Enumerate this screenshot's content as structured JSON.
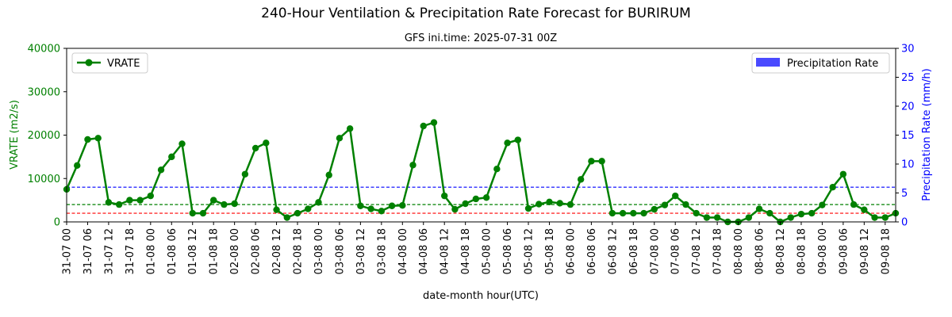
{
  "chart_data": {
    "type": "line",
    "title": "240-Hour Ventilation & Precipitation Rate Forecast for BURIRUM",
    "subtitle": "GFS ini.time: 2025-07-31 00Z",
    "xlabel": "date-month hour(UTC)",
    "ylabel_left": "VRATE (m2/s)",
    "ylabel_right": "Precipitation Rate (mm/h)",
    "ylim_left": [
      0,
      40000
    ],
    "ylim_right": [
      0,
      30
    ],
    "yticks_left": [
      "0",
      "10000",
      "20000",
      "30000",
      "40000"
    ],
    "yticks_right": [
      "0",
      "5",
      "10",
      "15",
      "20",
      "25",
      "30"
    ],
    "x_ticks": [
      "31-07 00",
      "31-07 06",
      "31-07 12",
      "31-07 18",
      "01-08 00",
      "01-08 06",
      "01-08 12",
      "01-08 18",
      "02-08 00",
      "02-08 06",
      "02-08 12",
      "02-08 18",
      "03-08 00",
      "03-08 06",
      "03-08 12",
      "03-08 18",
      "04-08 00",
      "04-08 06",
      "04-08 12",
      "04-08 18",
      "05-08 00",
      "05-08 06",
      "05-08 12",
      "05-08 18",
      "06-08 00",
      "06-08 06",
      "06-08 12",
      "06-08 18",
      "07-08 00",
      "07-08 06",
      "07-08 12",
      "07-08 18",
      "08-08 00",
      "08-08 06",
      "08-08 12",
      "08-08 18",
      "09-08 00",
      "09-08 06",
      "09-08 12",
      "09-08 18"
    ],
    "series": [
      {
        "name": "VRATE",
        "axis": "left",
        "color": "#008000",
        "values": [
          7500,
          13000,
          19000,
          19300,
          4500,
          4000,
          5000,
          5000,
          6000,
          12000,
          15000,
          18000,
          2000,
          2000,
          5000,
          4000,
          4200,
          11000,
          17000,
          18200,
          2800,
          1000,
          2000,
          3000,
          4500,
          10800,
          19300,
          21500,
          3700,
          3000,
          2500,
          3700,
          3800,
          13100,
          22100,
          22900,
          6000,
          2900,
          4200,
          5300,
          5600,
          12200,
          18200,
          18900,
          3100,
          4100,
          4600,
          4300,
          4000,
          9800,
          14000,
          14000,
          2000,
          2000,
          2000,
          2000,
          2900,
          3900,
          6000,
          4000,
          2000,
          1000,
          1000,
          0,
          0,
          1000,
          3000,
          2000,
          0,
          1000,
          1800,
          2000,
          3900,
          8000,
          11000,
          4000,
          2800,
          1000,
          1000,
          2000
        ]
      },
      {
        "name": "Precipitation Rate",
        "axis": "right",
        "color": "#4a4aff",
        "values": [
          0,
          0,
          0,
          0,
          0,
          0,
          0,
          0,
          0,
          0,
          0,
          0,
          0,
          0,
          0,
          0,
          0,
          0,
          0,
          0,
          0,
          0,
          0,
          0,
          0,
          0,
          0,
          0,
          0,
          0,
          0,
          0,
          0,
          0,
          0,
          0,
          0,
          0,
          0,
          0,
          0,
          0,
          0,
          0,
          0,
          0,
          0,
          0,
          0,
          0,
          0,
          0,
          0,
          0,
          0,
          0,
          0,
          0,
          0,
          0,
          0,
          0,
          0,
          0,
          0,
          0,
          0,
          0,
          0,
          0,
          0,
          0,
          0,
          0,
          0,
          0,
          0,
          0,
          0,
          0
        ]
      }
    ],
    "threshold_lines": [
      {
        "value": 2000,
        "color": "#ff0000"
      },
      {
        "value": 4000,
        "color": "#008000"
      },
      {
        "value": 8000,
        "color": "#0000ff"
      }
    ],
    "legend_left": "top-left",
    "legend_right": "top-right",
    "grid": false
  }
}
